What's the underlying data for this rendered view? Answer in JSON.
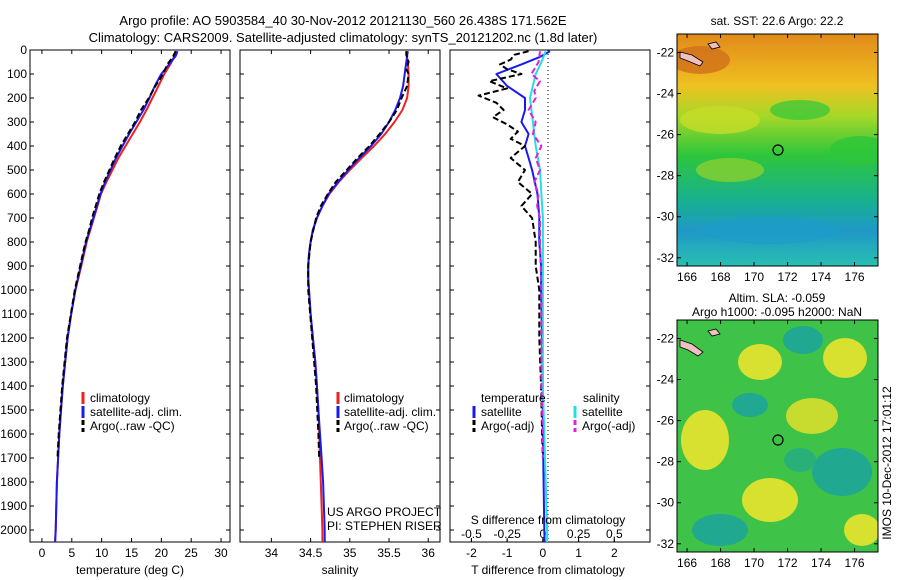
{
  "header": {
    "line1": "Argo profile: AO 5903584_40 30-Nov-2012 20121130_560 26.438S 171.562E",
    "line2": "Climatology: CARS2009. Satellite-adjusted climatology: synTS_20121202.nc (1.8d later)"
  },
  "depth_ticks": [
    "0",
    "100",
    "200",
    "300",
    "400",
    "500",
    "600",
    "700",
    "800",
    "900",
    "1000",
    "1100",
    "1200",
    "1300",
    "1400",
    "1500",
    "1600",
    "1700",
    "1800",
    "1900",
    "2000"
  ],
  "colors": {
    "climatology": "#ee2222",
    "satellite": "#1a1aee",
    "argo": "#000000",
    "satellite_salinity": "#22e0e0",
    "argo_salinity": "#e020e0"
  },
  "chart_data": [
    {
      "type": "line",
      "xlabel": "temperature (deg C)",
      "xticks": [
        "0",
        "5",
        "10",
        "15",
        "20",
        "25",
        "30"
      ],
      "xlim": [
        -2,
        31.5
      ],
      "ylim": [
        0,
        2050
      ],
      "legend": [
        "climatology",
        "satellite-adj. clim.",
        "Argo(..raw -QC)"
      ],
      "series": [
        {
          "name": "climatology",
          "depth": [
            5,
            25,
            60,
            100,
            150,
            200,
            250,
            300,
            350,
            400,
            450,
            500,
            550,
            600,
            650,
            700,
            750,
            800,
            900,
            1000,
            1100,
            1200,
            1300,
            1400,
            1500,
            1600,
            1700,
            1800,
            1900,
            2000,
            2050
          ],
          "values": [
            22.5,
            22.2,
            21.5,
            20.5,
            19.5,
            18.5,
            17.5,
            16.4,
            15.2,
            14.0,
            12.8,
            11.8,
            10.8,
            9.9,
            9.3,
            8.7,
            8.1,
            7.5,
            6.6,
            5.6,
            4.9,
            4.3,
            3.9,
            3.5,
            3.2,
            2.9,
            2.7,
            2.5,
            2.4,
            2.3,
            2.2
          ]
        },
        {
          "name": "satellite-adj. clim.",
          "depth": [
            5,
            25,
            60,
            100,
            150,
            200,
            250,
            300,
            350,
            400,
            450,
            500,
            550,
            600,
            650,
            700,
            750,
            800,
            900,
            1000,
            1100,
            1200,
            1300,
            1400,
            1500,
            1600,
            1700,
            1800,
            1900,
            2000,
            2050
          ],
          "values": [
            22.7,
            22.4,
            21.3,
            20.0,
            18.9,
            18.0,
            17.0,
            15.8,
            14.6,
            13.5,
            12.4,
            11.5,
            10.6,
            9.8,
            9.2,
            8.6,
            8.0,
            7.4,
            6.5,
            5.6,
            4.9,
            4.3,
            3.9,
            3.5,
            3.2,
            2.9,
            2.7,
            2.5,
            2.4,
            2.3,
            2.2
          ]
        },
        {
          "name": "Argo(..raw -QC)",
          "depth": [
            5,
            30,
            60,
            100,
            150,
            200,
            250,
            300,
            350,
            400,
            450,
            500,
            550,
            600,
            650,
            700,
            750,
            800,
            900,
            1000,
            1200,
            1400,
            1600,
            1700
          ],
          "values": [
            22.4,
            21.9,
            21.0,
            20.3,
            19.0,
            17.9,
            16.6,
            15.6,
            14.4,
            13.2,
            12.2,
            11.3,
            10.4,
            9.6,
            9.0,
            8.4,
            7.9,
            7.3,
            6.4,
            5.5,
            4.2,
            3.4,
            2.8,
            2.6
          ]
        }
      ]
    },
    {
      "type": "line",
      "xlabel": "salinity",
      "xticks": [
        "34",
        "34.5",
        "35",
        "35.5",
        "36"
      ],
      "xlim": [
        33.6,
        36.15
      ],
      "ylim": [
        0,
        2050
      ],
      "legend": [
        "climatology",
        "satellite-adj. clim.",
        "Argo(..raw -QC)"
      ],
      "series": [
        {
          "name": "climatology",
          "depth": [
            5,
            50,
            100,
            150,
            200,
            250,
            300,
            350,
            400,
            450,
            500,
            550,
            600,
            650,
            700,
            750,
            800,
            850,
            900,
            950,
            1000,
            1100,
            1200,
            1300,
            1400,
            1500,
            1600,
            1700,
            1800,
            1900,
            2000,
            2050
          ],
          "values": [
            35.72,
            35.74,
            35.75,
            35.75,
            35.73,
            35.67,
            35.57,
            35.45,
            35.31,
            35.15,
            35.0,
            34.86,
            34.74,
            34.65,
            34.58,
            34.53,
            34.5,
            34.48,
            34.47,
            34.47,
            34.48,
            34.5,
            34.53,
            34.56,
            34.58,
            34.6,
            34.61,
            34.62,
            34.63,
            34.64,
            34.65,
            34.65
          ]
        },
        {
          "name": "satellite-adj. clim.",
          "depth": [
            5,
            50,
            100,
            150,
            200,
            250,
            300,
            350,
            400,
            450,
            500,
            550,
            600,
            650,
            700,
            750,
            800,
            850,
            900,
            950,
            1000,
            1100,
            1200,
            1300,
            1400,
            1500,
            1600,
            1700,
            1800,
            1900,
            2000,
            2050
          ],
          "values": [
            35.74,
            35.72,
            35.7,
            35.68,
            35.64,
            35.58,
            35.5,
            35.4,
            35.27,
            35.12,
            34.98,
            34.85,
            34.73,
            34.65,
            34.58,
            34.53,
            34.5,
            34.48,
            34.47,
            34.47,
            34.48,
            34.5,
            34.53,
            34.56,
            34.58,
            34.6,
            34.62,
            34.64,
            34.66,
            34.67,
            34.68,
            34.68
          ]
        },
        {
          "name": "Argo(..raw -QC)",
          "depth": [
            5,
            20,
            50,
            80,
            100,
            150,
            200,
            250,
            300,
            350,
            400,
            450,
            500,
            550,
            600,
            650,
            700,
            800,
            900,
            1000,
            1200,
            1400,
            1600,
            1700
          ],
          "values": [
            35.72,
            35.72,
            35.75,
            35.72,
            35.75,
            35.73,
            35.66,
            35.6,
            35.5,
            35.38,
            35.25,
            35.1,
            34.96,
            34.82,
            34.72,
            34.63,
            34.57,
            34.5,
            34.47,
            34.47,
            34.52,
            34.57,
            34.6,
            34.61
          ]
        }
      ]
    },
    {
      "type": "line",
      "xlabel_bottom": "T difference from climatology",
      "xticks_bottom": [
        "-2",
        "-1",
        "0",
        "1",
        "2"
      ],
      "xlabel_top": "S difference from climatology",
      "xticks_top": [
        "-0.5",
        "-0.25",
        "0",
        "0.25",
        "0.5"
      ],
      "xlim": [
        -2.6,
        3.0
      ],
      "ylim": [
        0,
        2050
      ],
      "legend_temperature": {
        "title": "temperature",
        "items": [
          "satellite",
          "Argo(-adj)"
        ]
      },
      "legend_salinity": {
        "title": "salinity",
        "items": [
          "satellite",
          "Argo(-adj)"
        ]
      },
      "series": [
        {
          "name": "temperature satellite",
          "depth": [
            5,
            30,
            60,
            100,
            150,
            200,
            250,
            300,
            350,
            400,
            450,
            500,
            600,
            700,
            800,
            900,
            1000,
            1200,
            1400,
            1600,
            1800,
            2000,
            2050
          ],
          "values": [
            0.2,
            -0.1,
            -0.6,
            -1.3,
            -1.0,
            -0.5,
            -0.5,
            -0.6,
            -0.4,
            -0.5,
            -0.4,
            -0.3,
            -0.15,
            -0.1,
            -0.1,
            -0.05,
            -0.05,
            -0.02,
            0,
            0,
            0.02,
            0.04,
            0.05
          ]
        },
        {
          "name": "temperature Argo(-adj)",
          "depth": [
            5,
            20,
            40,
            60,
            80,
            100,
            130,
            160,
            190,
            220,
            250,
            280,
            310,
            340,
            370,
            400,
            450,
            500,
            550,
            600,
            650,
            700,
            800,
            900,
            1000,
            1200,
            1400,
            1600,
            1700
          ],
          "values": [
            -0.4,
            -0.8,
            -0.9,
            -1.2,
            -1.0,
            -0.6,
            -1.5,
            -1.0,
            -1.8,
            -1.3,
            -1.1,
            -1.4,
            -1.0,
            -0.7,
            -0.9,
            -0.5,
            -0.9,
            -0.5,
            -0.7,
            -0.3,
            -0.6,
            -0.3,
            -0.2,
            -0.2,
            -0.1,
            -0.1,
            -0.05,
            -0.02,
            0
          ]
        },
        {
          "name": "salinity satellite",
          "depth": [
            5,
            50,
            100,
            200,
            300,
            400,
            500,
            600,
            700,
            800,
            1000,
            1200,
            1400,
            1600,
            1800,
            2000,
            2050
          ],
          "values": [
            0.02,
            -0.01,
            -0.05,
            -0.09,
            -0.07,
            -0.05,
            -0.02,
            -0.01,
            0,
            0,
            0,
            0,
            0,
            0.01,
            0.02,
            0.03,
            0.03
          ]
        },
        {
          "name": "salinity Argo(-adj)",
          "depth": [
            5,
            50,
            100,
            130,
            170,
            200,
            250,
            300,
            350,
            400,
            450,
            500,
            550,
            600,
            650,
            700,
            800,
            1000,
            1200,
            1400,
            1600,
            1700
          ],
          "values": [
            -0.02,
            -0.03,
            -0.08,
            -0.02,
            -0.06,
            -0.05,
            -0.1,
            -0.05,
            -0.07,
            -0.01,
            -0.05,
            -0.02,
            -0.06,
            -0.03,
            -0.04,
            -0.02,
            -0.02,
            -0.01,
            -0.01,
            -0.01,
            0,
            0
          ]
        }
      ]
    }
  ],
  "credit": {
    "line1": "US ARGO PROJECT",
    "line2": "PI: STEPHEN RISER"
  },
  "maps": [
    {
      "title": "sat. SST: 22.6  Argo: 22.2",
      "yticks": [
        "-22",
        "-24",
        "-26",
        "-28",
        "-30",
        "-32"
      ],
      "xticks": [
        "166",
        "168",
        "170",
        "172",
        "174",
        "176"
      ]
    },
    {
      "title_line1": "Altim. SLA: -0.059",
      "title_line2": "Argo h1000: -0.095 h2000: NaN",
      "yticks": [
        "-22",
        "-24",
        "-26",
        "-28",
        "-30",
        "-32"
      ],
      "xticks": [
        "166",
        "168",
        "170",
        "172",
        "174",
        "176"
      ]
    }
  ],
  "side_stamp": "IMOS 10-Dec-2012 17:01:12"
}
